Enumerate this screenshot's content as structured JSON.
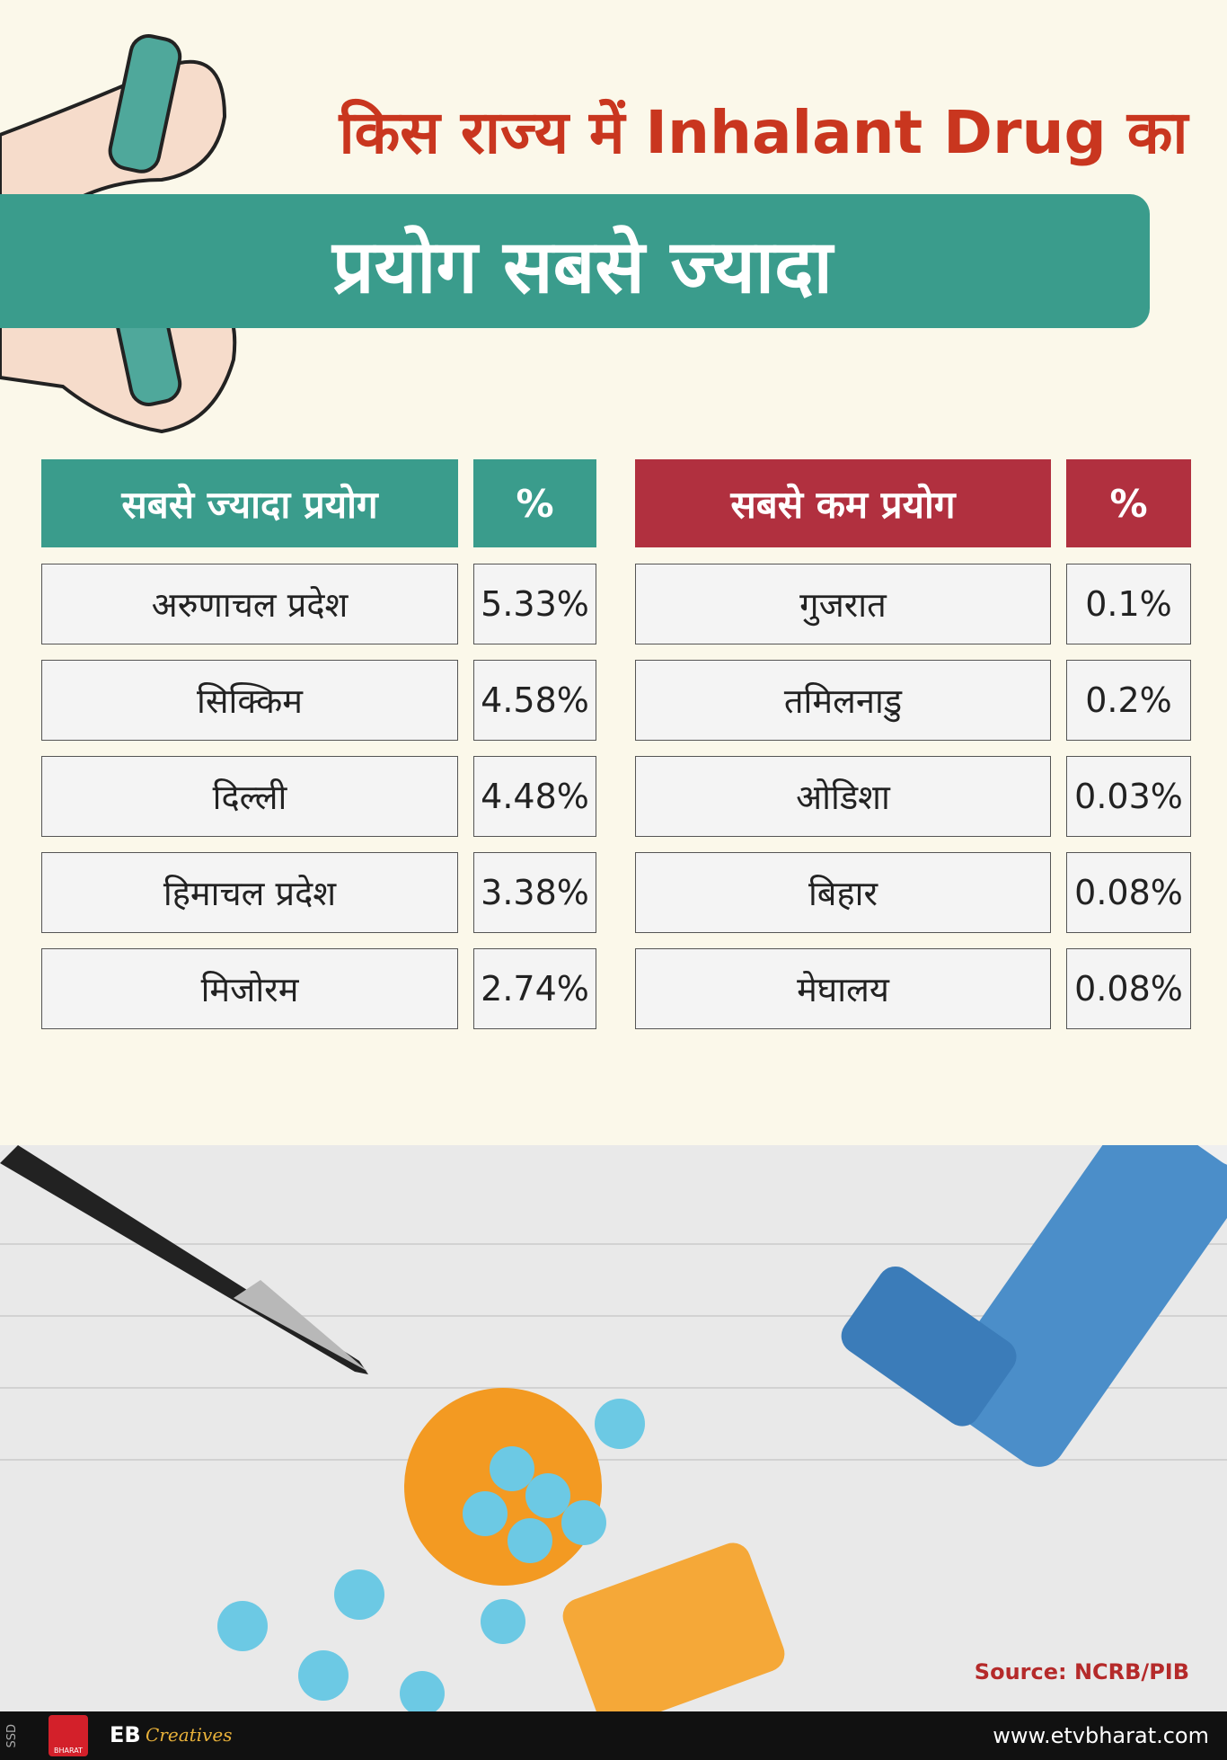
{
  "header": {
    "title_line1": "किस राज्य में Inhalant Drug का",
    "title_line2": "प्रयोग सबसे ज्यादा"
  },
  "tables": [
    {
      "headers": [
        "सबसे ज्यादा प्रयोग",
        "%"
      ],
      "rows": [
        [
          "अरुणाचल प्रदेश",
          "5.33%"
        ],
        [
          "सिक्किम",
          "4.58%"
        ],
        [
          "दिल्ली",
          "4.48%"
        ],
        [
          "हिमाचल प्रदेश",
          "3.38%"
        ],
        [
          "मिजोरम",
          "2.74%"
        ]
      ]
    },
    {
      "headers": [
        "सबसे कम प्रयोग",
        "%"
      ],
      "rows": [
        [
          "गुजरात",
          "0.1%"
        ],
        [
          "तमिलनाडु",
          "0.2%"
        ],
        [
          "ओडिशा",
          "0.03%"
        ],
        [
          "बिहार",
          "0.08%"
        ],
        [
          "मेघालय",
          "0.08%"
        ]
      ]
    }
  ],
  "source": "Source: NCRB/PIB",
  "footer": {
    "side_label": "SSD",
    "logo_text": "BHARAT",
    "brand": "EB",
    "brand_script": "Creatives",
    "website": "www.etvbharat.com"
  }
}
